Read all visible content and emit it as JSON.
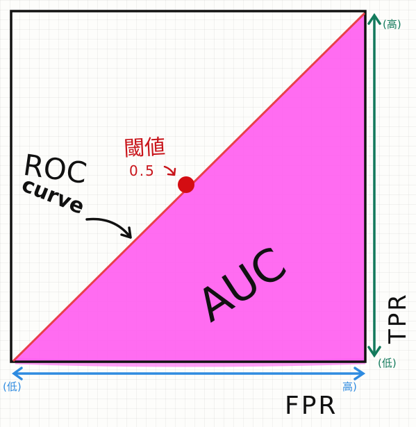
{
  "labels": {
    "roc_line1": "ROC",
    "roc_line2": "curve",
    "auc": "AUC",
    "threshold_title": "閾値",
    "threshold_value": "0.5",
    "fpr": "FPR",
    "tpr": "TPR",
    "fpr_low": "(低)",
    "fpr_high": "高)",
    "tpr_high": "(高)",
    "tpr_low": "(低)"
  },
  "colors": {
    "box": "#111111",
    "auc_fill": "#ff5ff0",
    "roc_line": "#e8404a",
    "threshold_dot": "#d40d12",
    "threshold_text": "#c8141a",
    "fpr_axis": "#2f8be0",
    "tpr_axis": "#137a5c",
    "ink": "#111111"
  },
  "chart_data": {
    "type": "diagram",
    "roc_curve": {
      "x": [
        0,
        1
      ],
      "y": [
        0,
        1
      ]
    },
    "threshold_point": {
      "value": 0.5,
      "x": 0.5,
      "y": 0.5
    },
    "auc_region": "area-under-roc-curve"
  }
}
